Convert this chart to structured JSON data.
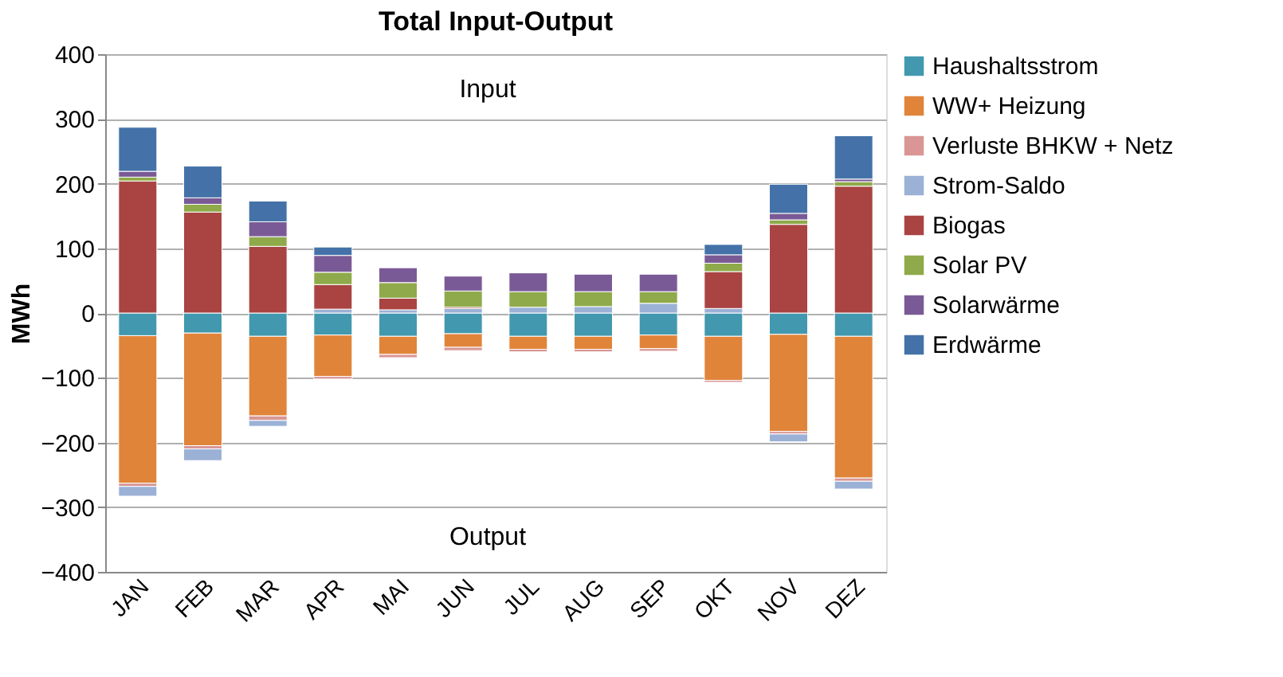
{
  "chart_data": {
    "type": "bar",
    "stacked": true,
    "title": "Total Input-Output",
    "ylabel": "MWh",
    "categories": [
      "JAN",
      "FEB",
      "MAR",
      "APR",
      "MAI",
      "JUN",
      "JUL",
      "AUG",
      "SEP",
      "OKT",
      "NOV",
      "DEZ"
    ],
    "series": [
      {
        "name": "Haushaltsstrom",
        "color": "#4298ae",
        "values": [
          -35,
          -31,
          -36,
          -34,
          -36,
          -32,
          -36,
          -36,
          -34,
          -36,
          -33,
          -36
        ]
      },
      {
        "name": "WW+ Heizung",
        "color": "#e0843a",
        "values": [
          -228,
          -174,
          -123,
          -64,
          -28,
          -21,
          -20,
          -20,
          -21,
          -68,
          -150,
          -219
        ]
      },
      {
        "name": "Verluste BHKW + Netz",
        "color": "#d99694",
        "values": [
          -5,
          -5,
          -7,
          -4,
          -5,
          -5,
          -4,
          -4,
          -4,
          -3,
          -4,
          -5
        ]
      },
      {
        "name": "Strom-Saldo",
        "color": "#9bb1d6",
        "values": [
          -15,
          -18,
          -9,
          6,
          5,
          7,
          9,
          10,
          15,
          7,
          -12,
          -12
        ]
      },
      {
        "name": "Biogas",
        "color": "#a94442",
        "values": [
          204,
          156,
          103,
          38,
          18,
          2,
          null,
          null,
          null,
          57,
          137,
          196
        ]
      },
      {
        "name": "Solar PV",
        "color": "#8faa4a",
        "values": [
          6,
          12,
          15,
          19,
          24,
          25,
          24,
          23,
          18,
          13,
          7,
          7
        ]
      },
      {
        "name": "Solarwärme",
        "color": "#7a5a96",
        "values": [
          9,
          10,
          23,
          26,
          23,
          23,
          29,
          27,
          27,
          13,
          10,
          4
        ]
      },
      {
        "name": "Erdwärme",
        "color": "#4472a8",
        "values": [
          68,
          49,
          32,
          13,
          null,
          null,
          null,
          null,
          null,
          16,
          45,
          67
        ]
      }
    ],
    "ylim": [
      -400,
      400
    ],
    "yticks": [
      -400,
      -300,
      -200,
      -100,
      0,
      100,
      200,
      300,
      400
    ],
    "grid": "y",
    "legend": "right",
    "annotations": [
      "Input",
      "Output"
    ]
  }
}
